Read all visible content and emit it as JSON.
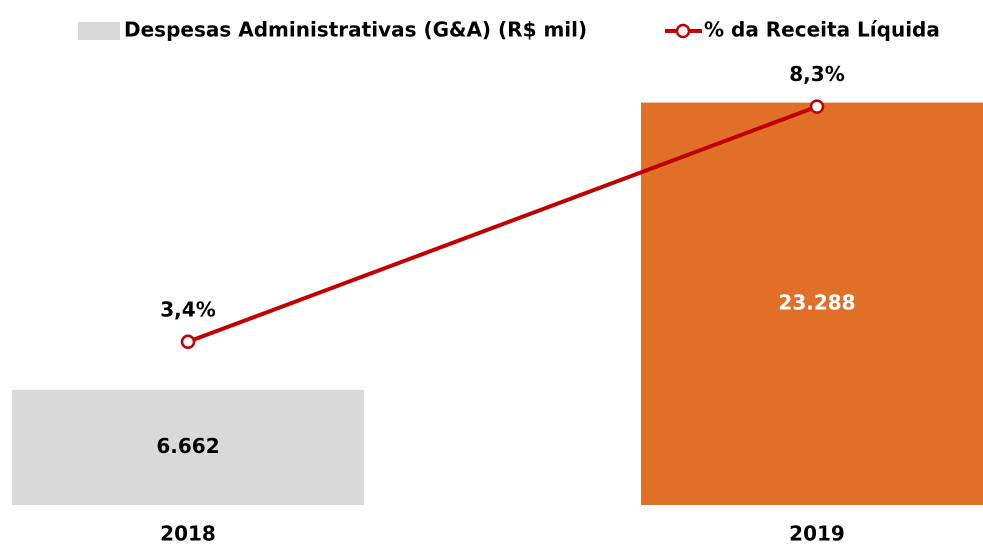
{
  "chart_data": {
    "type": "bar-line",
    "categories": [
      "2018",
      "2019"
    ],
    "series": [
      {
        "name": "Despesas Administrativas (G&A) (R$ mil)",
        "type": "bar",
        "color": "#d9d9d9",
        "colors": [
          "#d9d9d9",
          "#e07028"
        ],
        "label_colors": [
          "#000000",
          "#ffffff"
        ],
        "values": [
          6662,
          23288
        ],
        "value_labels": [
          "6.662",
          "23.288"
        ]
      },
      {
        "name": "% da Receita Líquida",
        "type": "line",
        "axis": "y2",
        "color": "#c00000",
        "values": [
          3.4,
          8.3
        ],
        "value_labels": [
          "3,4%",
          "8,3%"
        ]
      }
    ],
    "ylim": [
      0,
      25000
    ],
    "y2lim": [
      0,
      9
    ]
  }
}
